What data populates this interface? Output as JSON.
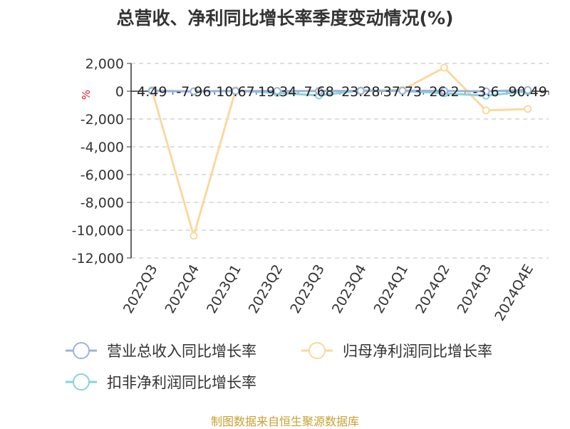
{
  "title": "总营收、净利同比增长率季度变动情况(%)",
  "source": "制图数据来自恒生聚源数据库",
  "colors": {
    "revenue": "#9bb4d8",
    "net_profit": "#f9d99f",
    "deducted_net_profit": "#8ad1dc",
    "grid": "#cccccc",
    "axis": "#333333",
    "unit": "#e02020"
  },
  "chart_data": {
    "type": "line",
    "title": "总营收、净利同比增长率季度变动情况(%)",
    "ylabel": "%",
    "ylim": [
      -12000,
      2000
    ],
    "yticks": [
      2000,
      0,
      -2000,
      -4000,
      -6000,
      -8000,
      -10000,
      -12000
    ],
    "ytick_labels": [
      "2,000",
      "0",
      "-2,000",
      "-4,000",
      "-6,000",
      "-8,000",
      "-10,000",
      "-12,000"
    ],
    "grid": true,
    "legend_position": "bottom",
    "categories": [
      "2022Q3",
      "2022Q4",
      "2023Q1",
      "2023Q2",
      "2023Q3",
      "2023Q4",
      "2024Q1",
      "2024Q2",
      "2024Q3",
      "2024Q4E"
    ],
    "series": [
      {
        "name": "营业总收入同比增长率",
        "color": "#9bb4d8",
        "values": [
          4.49,
          -7.96,
          10.67,
          19.34,
          7.68,
          23.28,
          37.73,
          26.2,
          -3.6,
          90.49
        ],
        "labels": [
          "4.49",
          "-7.96",
          "10.67",
          "19.34",
          "7.68",
          "23.28",
          "37.73",
          "26.2",
          "-3.6",
          "90.49"
        ]
      },
      {
        "name": "归母净利润同比增长率",
        "color": "#f9d99f",
        "values": [
          80,
          -10400,
          50,
          -60,
          50,
          0,
          100,
          1700,
          -1380,
          -1280
        ]
      },
      {
        "name": "扣非净利润同比增长率",
        "color": "#8ad1dc",
        "values": [
          50,
          -20,
          30,
          -120,
          -300,
          50,
          20,
          -150,
          -320,
          0
        ]
      }
    ]
  }
}
